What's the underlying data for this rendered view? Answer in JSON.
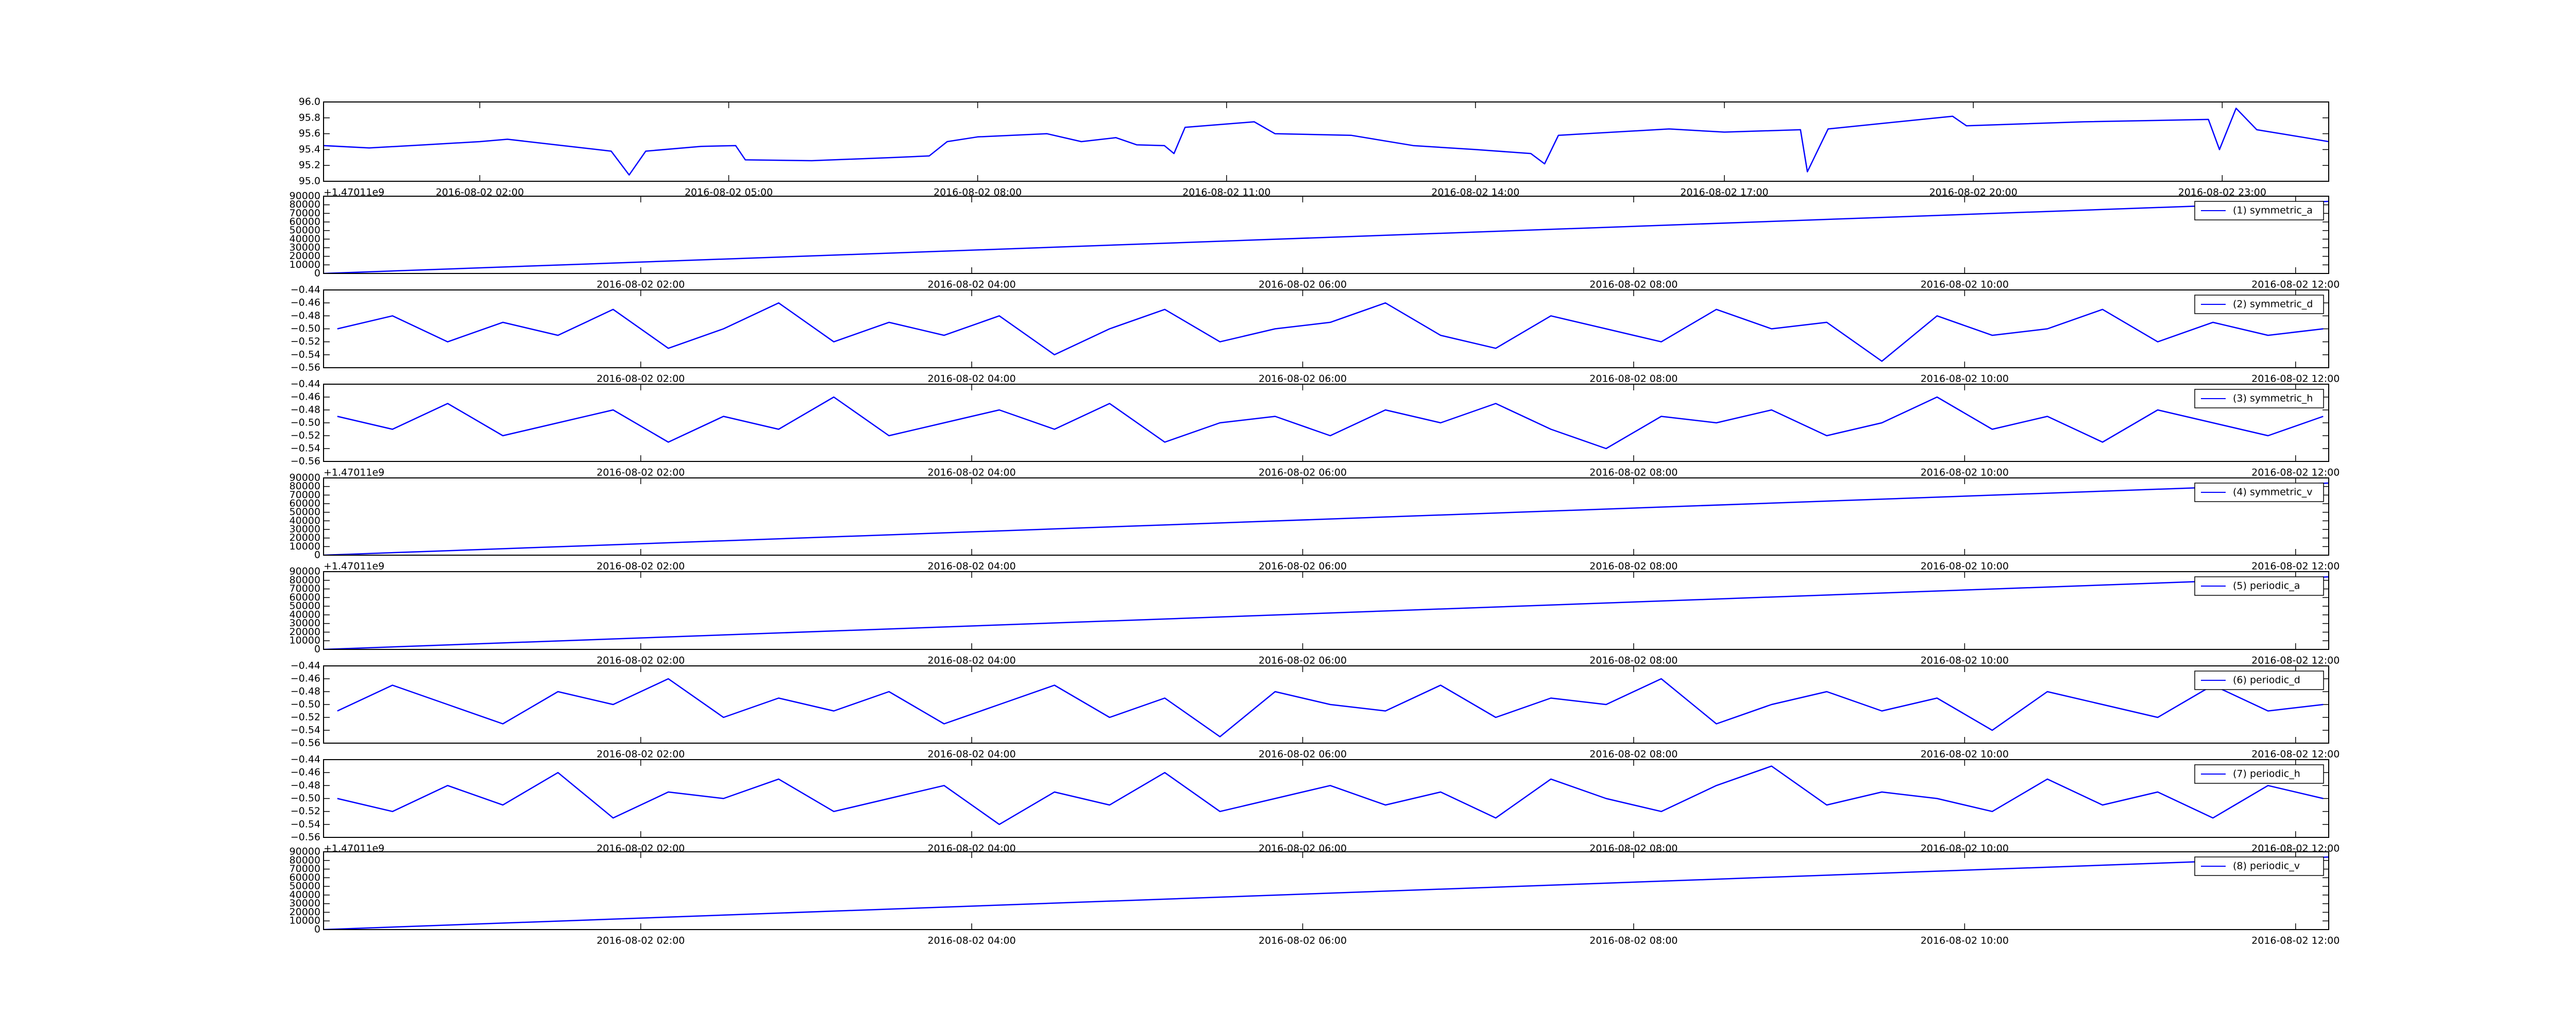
{
  "chart_data": [
    {
      "type": "line",
      "x": [
        "2016-08-02 00:07",
        "2016-08-02 00:40",
        "2016-08-02 01:20",
        "2016-08-02 02:00",
        "2016-08-02 02:20",
        "2016-08-02 03:00",
        "2016-08-02 03:35",
        "2016-08-02 03:48",
        "2016-08-02 04:00",
        "2016-08-02 04:40",
        "2016-08-02 05:05",
        "2016-08-02 05:12",
        "2016-08-02 06:00",
        "2016-08-02 07:00",
        "2016-08-02 07:25",
        "2016-08-02 07:38",
        "2016-08-02 08:00",
        "2016-08-02 08:50",
        "2016-08-02 09:15",
        "2016-08-02 09:40",
        "2016-08-02 09:55",
        "2016-08-02 10:15",
        "2016-08-02 10:22",
        "2016-08-02 10:30",
        "2016-08-02 11:20",
        "2016-08-02 11:35",
        "2016-08-02 12:30",
        "2016-08-02 13:15",
        "2016-08-02 14:00",
        "2016-08-02 14:40",
        "2016-08-02 14:50",
        "2016-08-02 15:00",
        "2016-08-02 16:20",
        "2016-08-02 17:00",
        "2016-08-02 17:55",
        "2016-08-02 18:00",
        "2016-08-02 18:15",
        "2016-08-02 19:45",
        "2016-08-02 19:55",
        "2016-08-02 21:20",
        "2016-08-02 22:50",
        "2016-08-02 22:58",
        "2016-08-02 23:10",
        "2016-08-02 23:25",
        "2016-08-03 00:00",
        "2016-08-03 00:17"
      ],
      "series": [
        {
          "color": "#0000ff",
          "values": [
            95.45,
            95.42,
            95.46,
            95.5,
            95.53,
            95.45,
            95.38,
            95.08,
            95.38,
            95.44,
            95.45,
            95.27,
            95.26,
            95.3,
            95.32,
            95.5,
            95.56,
            95.6,
            95.5,
            95.55,
            95.46,
            95.45,
            95.35,
            95.68,
            95.75,
            95.6,
            95.58,
            95.45,
            95.4,
            95.35,
            95.22,
            95.58,
            95.66,
            95.62,
            95.65,
            95.12,
            95.66,
            95.82,
            95.7,
            95.75,
            95.78,
            95.4,
            95.92,
            95.65,
            95.55,
            95.5
          ]
        }
      ],
      "xlim": [
        "2016-08-02 00:07",
        "2016-08-03 00:17"
      ],
      "xticks": [
        "2016-08-02 02:00",
        "2016-08-02 05:00",
        "2016-08-02 08:00",
        "2016-08-02 11:00",
        "2016-08-02 14:00",
        "2016-08-02 17:00",
        "2016-08-02 20:00",
        "2016-08-02 23:00"
      ],
      "ylim": [
        95.0,
        96.0
      ],
      "yticks": [
        {
          "value": 95.0,
          "label": "95.0"
        },
        95.2,
        95.4,
        95.6,
        95.8,
        {
          "value": 96.0,
          "label": "96.0"
        }
      ],
      "offset_text": "+1.47011e9"
    },
    {
      "type": "line",
      "x": [
        "2016-08-02 00:05",
        "2016-08-02 12:12"
      ],
      "series": [
        {
          "name": "(1) symmetric_a",
          "color": "#0000ff",
          "values": [
            0,
            84000
          ]
        }
      ],
      "xlim": [
        "2016-08-02 00:05",
        "2016-08-02 12:12"
      ],
      "xticks": [
        "2016-08-02 02:00",
        "2016-08-02 04:00",
        "2016-08-02 06:00",
        "2016-08-02 08:00",
        "2016-08-02 10:00",
        "2016-08-02 12:00"
      ],
      "ylim": [
        0,
        90000
      ],
      "yticks": [
        0,
        10000,
        20000,
        30000,
        40000,
        50000,
        60000,
        70000,
        80000,
        90000
      ],
      "legend": "upper right"
    },
    {
      "type": "line",
      "x": [
        "2016-08-02 00:10",
        "2016-08-02 00:30",
        "2016-08-02 00:50",
        "2016-08-02 01:10",
        "2016-08-02 01:30",
        "2016-08-02 01:50",
        "2016-08-02 02:10",
        "2016-08-02 02:30",
        "2016-08-02 02:50",
        "2016-08-02 03:10",
        "2016-08-02 03:30",
        "2016-08-02 03:50",
        "2016-08-02 04:10",
        "2016-08-02 04:30",
        "2016-08-02 04:50",
        "2016-08-02 05:10",
        "2016-08-02 05:30",
        "2016-08-02 05:50",
        "2016-08-02 06:10",
        "2016-08-02 06:30",
        "2016-08-02 06:50",
        "2016-08-02 07:10",
        "2016-08-02 07:30",
        "2016-08-02 07:50",
        "2016-08-02 08:10",
        "2016-08-02 08:30",
        "2016-08-02 08:50",
        "2016-08-02 09:10",
        "2016-08-02 09:30",
        "2016-08-02 09:50",
        "2016-08-02 10:10",
        "2016-08-02 10:30",
        "2016-08-02 10:50",
        "2016-08-02 11:10",
        "2016-08-02 11:30",
        "2016-08-02 11:50",
        "2016-08-02 12:10"
      ],
      "series": [
        {
          "name": "(2) symmetric_d",
          "color": "#0000ff",
          "values": [
            -0.5,
            -0.48,
            -0.52,
            -0.49,
            -0.51,
            -0.47,
            -0.53,
            -0.5,
            -0.46,
            -0.52,
            -0.49,
            -0.51,
            -0.48,
            -0.54,
            -0.5,
            -0.47,
            -0.52,
            -0.5,
            -0.49,
            -0.46,
            -0.51,
            -0.53,
            -0.48,
            -0.5,
            -0.52,
            -0.47,
            -0.5,
            -0.49,
            -0.55,
            -0.48,
            -0.51,
            -0.5,
            -0.47,
            -0.52,
            -0.49,
            -0.51,
            -0.5
          ]
        }
      ],
      "xlim": [
        "2016-08-02 00:05",
        "2016-08-02 12:12"
      ],
      "xticks": [
        "2016-08-02 02:00",
        "2016-08-02 04:00",
        "2016-08-02 06:00",
        "2016-08-02 08:00",
        "2016-08-02 10:00",
        "2016-08-02 12:00"
      ],
      "ylim": [
        -0.56,
        -0.44
      ],
      "yticks": [
        {
          "value": -0.56,
          "label": "−0.56"
        },
        {
          "value": -0.54,
          "label": "−0.54"
        },
        {
          "value": -0.52,
          "label": "−0.52"
        },
        {
          "value": -0.5,
          "label": "−0.50"
        },
        {
          "value": -0.48,
          "label": "−0.48"
        },
        {
          "value": -0.46,
          "label": "−0.46"
        },
        {
          "value": -0.44,
          "label": "−0.44"
        }
      ],
      "legend": "upper right"
    },
    {
      "type": "line",
      "x": [
        "2016-08-02 00:10",
        "2016-08-02 00:30",
        "2016-08-02 00:50",
        "2016-08-02 01:10",
        "2016-08-02 01:30",
        "2016-08-02 01:50",
        "2016-08-02 02:10",
        "2016-08-02 02:30",
        "2016-08-02 02:50",
        "2016-08-02 03:10",
        "2016-08-02 03:30",
        "2016-08-02 03:50",
        "2016-08-02 04:10",
        "2016-08-02 04:30",
        "2016-08-02 04:50",
        "2016-08-02 05:10",
        "2016-08-02 05:30",
        "2016-08-02 05:50",
        "2016-08-02 06:10",
        "2016-08-02 06:30",
        "2016-08-02 06:50",
        "2016-08-02 07:10",
        "2016-08-02 07:30",
        "2016-08-02 07:50",
        "2016-08-02 08:10",
        "2016-08-02 08:30",
        "2016-08-02 08:50",
        "2016-08-02 09:10",
        "2016-08-02 09:30",
        "2016-08-02 09:50",
        "2016-08-02 10:10",
        "2016-08-02 10:30",
        "2016-08-02 10:50",
        "2016-08-02 11:10",
        "2016-08-02 11:30",
        "2016-08-02 11:50",
        "2016-08-02 12:10"
      ],
      "series": [
        {
          "name": "(3) symmetric_h",
          "color": "#0000ff",
          "values": [
            -0.49,
            -0.51,
            -0.47,
            -0.52,
            -0.5,
            -0.48,
            -0.53,
            -0.49,
            -0.51,
            -0.46,
            -0.52,
            -0.5,
            -0.48,
            -0.51,
            -0.47,
            -0.53,
            -0.5,
            -0.49,
            -0.52,
            -0.48,
            -0.5,
            -0.47,
            -0.51,
            -0.54,
            -0.49,
            -0.5,
            -0.48,
            -0.52,
            -0.5,
            -0.46,
            -0.51,
            -0.49,
            -0.53,
            -0.48,
            -0.5,
            -0.52,
            -0.49
          ]
        }
      ],
      "xlim": [
        "2016-08-02 00:05",
        "2016-08-02 12:12"
      ],
      "xticks": [
        "2016-08-02 02:00",
        "2016-08-02 04:00",
        "2016-08-02 06:00",
        "2016-08-02 08:00",
        "2016-08-02 10:00",
        "2016-08-02 12:00"
      ],
      "ylim": [
        -0.56,
        -0.44
      ],
      "yticks": [
        {
          "value": -0.56,
          "label": "−0.56"
        },
        {
          "value": -0.54,
          "label": "−0.54"
        },
        {
          "value": -0.52,
          "label": "−0.52"
        },
        {
          "value": -0.5,
          "label": "−0.50"
        },
        {
          "value": -0.48,
          "label": "−0.48"
        },
        {
          "value": -0.46,
          "label": "−0.46"
        },
        {
          "value": -0.44,
          "label": "−0.44"
        }
      ],
      "legend": "upper right",
      "offset_text": "+1.47011e9"
    },
    {
      "type": "line",
      "x": [
        "2016-08-02 00:05",
        "2016-08-02 12:12"
      ],
      "series": [
        {
          "name": "(4) symmetric_v",
          "color": "#0000ff",
          "values": [
            0,
            84000
          ]
        }
      ],
      "xlim": [
        "2016-08-02 00:05",
        "2016-08-02 12:12"
      ],
      "xticks": [
        "2016-08-02 02:00",
        "2016-08-02 04:00",
        "2016-08-02 06:00",
        "2016-08-02 08:00",
        "2016-08-02 10:00",
        "2016-08-02 12:00"
      ],
      "ylim": [
        0,
        90000
      ],
      "yticks": [
        0,
        10000,
        20000,
        30000,
        40000,
        50000,
        60000,
        70000,
        80000,
        90000
      ],
      "legend": "upper right",
      "offset_text": "+1.47011e9"
    },
    {
      "type": "line",
      "x": [
        "2016-08-02 00:05",
        "2016-08-02 12:12"
      ],
      "series": [
        {
          "name": "(5) periodic_a",
          "color": "#0000ff",
          "values": [
            0,
            84000
          ]
        }
      ],
      "xlim": [
        "2016-08-02 00:05",
        "2016-08-02 12:12"
      ],
      "xticks": [
        "2016-08-02 02:00",
        "2016-08-02 04:00",
        "2016-08-02 06:00",
        "2016-08-02 08:00",
        "2016-08-02 10:00",
        "2016-08-02 12:00"
      ],
      "ylim": [
        0,
        90000
      ],
      "yticks": [
        0,
        10000,
        20000,
        30000,
        40000,
        50000,
        60000,
        70000,
        80000,
        90000
      ],
      "legend": "upper right"
    },
    {
      "type": "line",
      "x": [
        "2016-08-02 00:10",
        "2016-08-02 00:30",
        "2016-08-02 00:50",
        "2016-08-02 01:10",
        "2016-08-02 01:30",
        "2016-08-02 01:50",
        "2016-08-02 02:10",
        "2016-08-02 02:30",
        "2016-08-02 02:50",
        "2016-08-02 03:10",
        "2016-08-02 03:30",
        "2016-08-02 03:50",
        "2016-08-02 04:10",
        "2016-08-02 04:30",
        "2016-08-02 04:50",
        "2016-08-02 05:10",
        "2016-08-02 05:30",
        "2016-08-02 05:50",
        "2016-08-02 06:10",
        "2016-08-02 06:30",
        "2016-08-02 06:50",
        "2016-08-02 07:10",
        "2016-08-02 07:30",
        "2016-08-02 07:50",
        "2016-08-02 08:10",
        "2016-08-02 08:30",
        "2016-08-02 08:50",
        "2016-08-02 09:10",
        "2016-08-02 09:30",
        "2016-08-02 09:50",
        "2016-08-02 10:10",
        "2016-08-02 10:30",
        "2016-08-02 10:50",
        "2016-08-02 11:10",
        "2016-08-02 11:30",
        "2016-08-02 11:50",
        "2016-08-02 12:10"
      ],
      "series": [
        {
          "name": "(6) periodic_d",
          "color": "#0000ff",
          "values": [
            -0.51,
            -0.47,
            -0.5,
            -0.53,
            -0.48,
            -0.5,
            -0.46,
            -0.52,
            -0.49,
            -0.51,
            -0.48,
            -0.53,
            -0.5,
            -0.47,
            -0.52,
            -0.49,
            -0.55,
            -0.48,
            -0.5,
            -0.51,
            -0.47,
            -0.52,
            -0.49,
            -0.5,
            -0.46,
            -0.53,
            -0.5,
            -0.48,
            -0.51,
            -0.49,
            -0.54,
            -0.48,
            -0.5,
            -0.52,
            -0.47,
            -0.51,
            -0.5
          ]
        }
      ],
      "xlim": [
        "2016-08-02 00:05",
        "2016-08-02 12:12"
      ],
      "xticks": [
        "2016-08-02 02:00",
        "2016-08-02 04:00",
        "2016-08-02 06:00",
        "2016-08-02 08:00",
        "2016-08-02 10:00",
        "2016-08-02 12:00"
      ],
      "ylim": [
        -0.56,
        -0.44
      ],
      "yticks": [
        {
          "value": -0.56,
          "label": "−0.56"
        },
        {
          "value": -0.54,
          "label": "−0.54"
        },
        {
          "value": -0.52,
          "label": "−0.52"
        },
        {
          "value": -0.5,
          "label": "−0.50"
        },
        {
          "value": -0.48,
          "label": "−0.48"
        },
        {
          "value": -0.46,
          "label": "−0.46"
        },
        {
          "value": -0.44,
          "label": "−0.44"
        }
      ],
      "legend": "upper right"
    },
    {
      "type": "line",
      "x": [
        "2016-08-02 00:10",
        "2016-08-02 00:30",
        "2016-08-02 00:50",
        "2016-08-02 01:10",
        "2016-08-02 01:30",
        "2016-08-02 01:50",
        "2016-08-02 02:10",
        "2016-08-02 02:30",
        "2016-08-02 02:50",
        "2016-08-02 03:10",
        "2016-08-02 03:30",
        "2016-08-02 03:50",
        "2016-08-02 04:10",
        "2016-08-02 04:30",
        "2016-08-02 04:50",
        "2016-08-02 05:10",
        "2016-08-02 05:30",
        "2016-08-02 05:50",
        "2016-08-02 06:10",
        "2016-08-02 06:30",
        "2016-08-02 06:50",
        "2016-08-02 07:10",
        "2016-08-02 07:30",
        "2016-08-02 07:50",
        "2016-08-02 08:10",
        "2016-08-02 08:30",
        "2016-08-02 08:50",
        "2016-08-02 09:10",
        "2016-08-02 09:30",
        "2016-08-02 09:50",
        "2016-08-02 10:10",
        "2016-08-02 10:30",
        "2016-08-02 10:50",
        "2016-08-02 11:10",
        "2016-08-02 11:30",
        "2016-08-02 11:50",
        "2016-08-02 12:10"
      ],
      "series": [
        {
          "name": "(7) periodic_h",
          "color": "#0000ff",
          "values": [
            -0.5,
            -0.52,
            -0.48,
            -0.51,
            -0.46,
            -0.53,
            -0.49,
            -0.5,
            -0.47,
            -0.52,
            -0.5,
            -0.48,
            -0.54,
            -0.49,
            -0.51,
            -0.46,
            -0.52,
            -0.5,
            -0.48,
            -0.51,
            -0.49,
            -0.53,
            -0.47,
            -0.5,
            -0.52,
            -0.48,
            -0.45,
            -0.51,
            -0.49,
            -0.5,
            -0.52,
            -0.47,
            -0.51,
            -0.49,
            -0.53,
            -0.48,
            -0.5
          ]
        }
      ],
      "xlim": [
        "2016-08-02 00:05",
        "2016-08-02 12:12"
      ],
      "xticks": [
        "2016-08-02 02:00",
        "2016-08-02 04:00",
        "2016-08-02 06:00",
        "2016-08-02 08:00",
        "2016-08-02 10:00",
        "2016-08-02 12:00"
      ],
      "ylim": [
        -0.56,
        -0.44
      ],
      "yticks": [
        {
          "value": -0.56,
          "label": "−0.56"
        },
        {
          "value": -0.54,
          "label": "−0.54"
        },
        {
          "value": -0.52,
          "label": "−0.52"
        },
        {
          "value": -0.5,
          "label": "−0.50"
        },
        {
          "value": -0.48,
          "label": "−0.48"
        },
        {
          "value": -0.46,
          "label": "−0.46"
        },
        {
          "value": -0.44,
          "label": "−0.44"
        }
      ],
      "legend": "upper right",
      "offset_text": "+1.47011e9"
    },
    {
      "type": "line",
      "x": [
        "2016-08-02 00:05",
        "2016-08-02 12:12"
      ],
      "series": [
        {
          "name": "(8) periodic_v",
          "color": "#0000ff",
          "values": [
            0,
            84000
          ]
        }
      ],
      "xlim": [
        "2016-08-02 00:05",
        "2016-08-02 12:12"
      ],
      "xticks": [
        "2016-08-02 02:00",
        "2016-08-02 04:00",
        "2016-08-02 06:00",
        "2016-08-02 08:00",
        "2016-08-02 10:00",
        "2016-08-02 12:00"
      ],
      "ylim": [
        0,
        90000
      ],
      "yticks": [
        0,
        10000,
        20000,
        30000,
        40000,
        50000,
        60000,
        70000,
        80000,
        90000
      ],
      "legend": "upper right"
    }
  ]
}
